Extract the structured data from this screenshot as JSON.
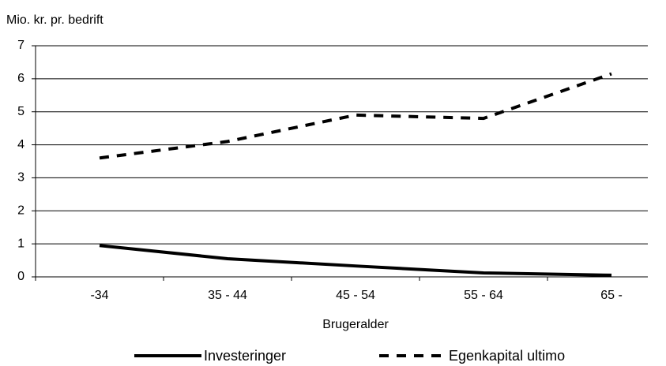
{
  "chart_data": {
    "type": "line",
    "y_axis_label": "Mio. kr. pr. bedrift",
    "x_axis_label": "Brugeralder",
    "categories": [
      "-34",
      "35 - 44",
      "45 - 54",
      "55 - 64",
      "65 -"
    ],
    "series": [
      {
        "name": "Investeringer",
        "color": "#000000",
        "dash": "solid",
        "values": [
          0.95,
          0.55,
          0.33,
          0.12,
          0.05
        ]
      },
      {
        "name": "Egenkapital ultimo",
        "color": "#000000",
        "dash": "dashed",
        "values": [
          3.6,
          4.1,
          4.9,
          4.8,
          6.15
        ]
      }
    ],
    "ylim": [
      0,
      7
    ],
    "yticks": [
      0,
      1,
      2,
      3,
      4,
      5,
      6,
      7
    ],
    "grid": true,
    "legend": "bottom"
  }
}
